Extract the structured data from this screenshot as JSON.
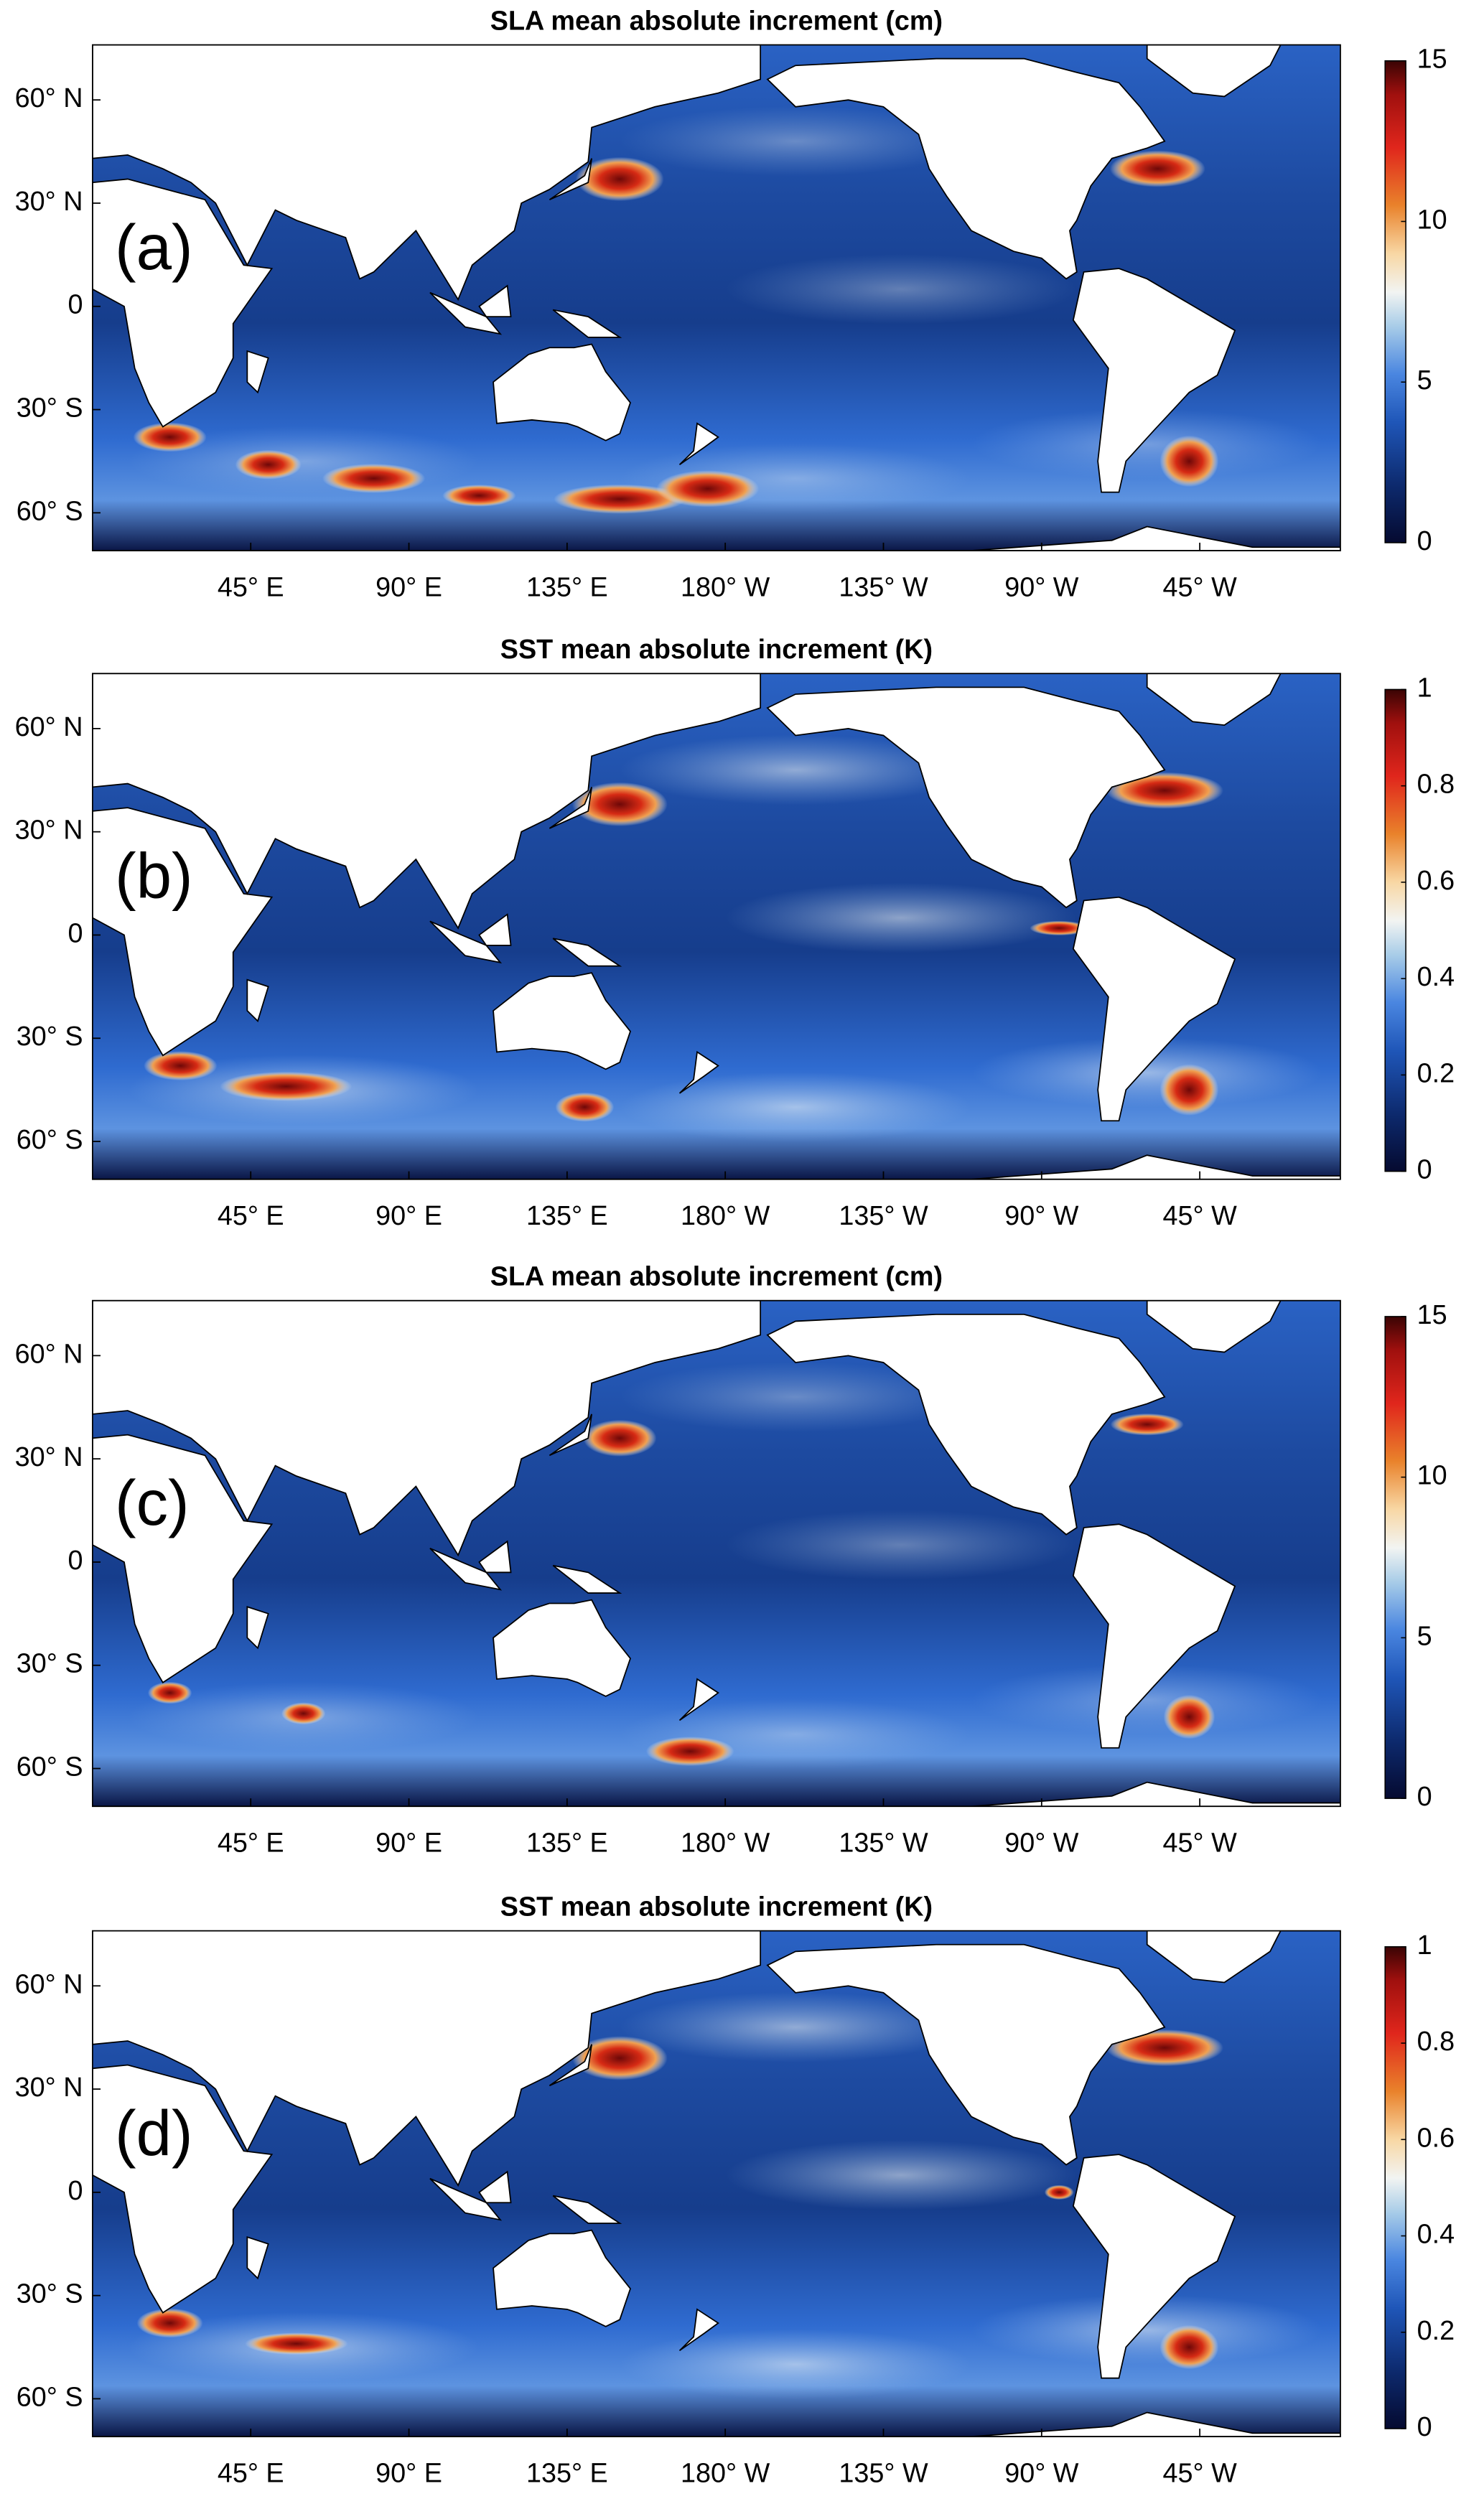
{
  "map": {
    "lonlim": [
      0,
      355
    ],
    "latlim": [
      -71,
      76
    ]
  },
  "lat_ticks": [
    {
      "value": 60,
      "label": "60° N"
    },
    {
      "value": 30,
      "label": "30° N"
    },
    0,
    {
      "value": -30,
      "label": "30° S"
    },
    {
      "value": -60,
      "label": "60° S"
    }
  ],
  "lon_ticks": [
    {
      "value": 45,
      "label": "45° E"
    },
    {
      "value": 90,
      "label": "90° E"
    },
    {
      "value": 135,
      "label": "135° E"
    },
    {
      "value": 180,
      "label": "180° W"
    },
    {
      "value": 225,
      "label": "135° W"
    },
    {
      "value": 270,
      "label": "90° W"
    },
    {
      "value": 315,
      "label": "45° W"
    }
  ],
  "panels": [
    {
      "title": "SLA mean absolute increment (cm)",
      "label": "(a)",
      "cbar_lim": [
        0,
        15
      ],
      "cbar_ticks": [
        0,
        5,
        10,
        15
      ]
    },
    {
      "title": "SST mean absolute increment (K)",
      "label": "(b)",
      "cbar_lim": [
        0,
        1
      ],
      "cbar_ticks": [
        0,
        0.2,
        0.4,
        0.6,
        0.8,
        1
      ]
    },
    {
      "title": "SLA mean absolute increment (cm)",
      "label": "(c)",
      "cbar_lim": [
        0,
        15
      ],
      "cbar_ticks": [
        0,
        5,
        10,
        15
      ]
    },
    {
      "title": "SST mean absolute increment (K)",
      "label": "(d)",
      "cbar_lim": [
        0,
        1
      ],
      "cbar_ticks": [
        0,
        0.2,
        0.4,
        0.6,
        0.8,
        1
      ]
    }
  ]
}
